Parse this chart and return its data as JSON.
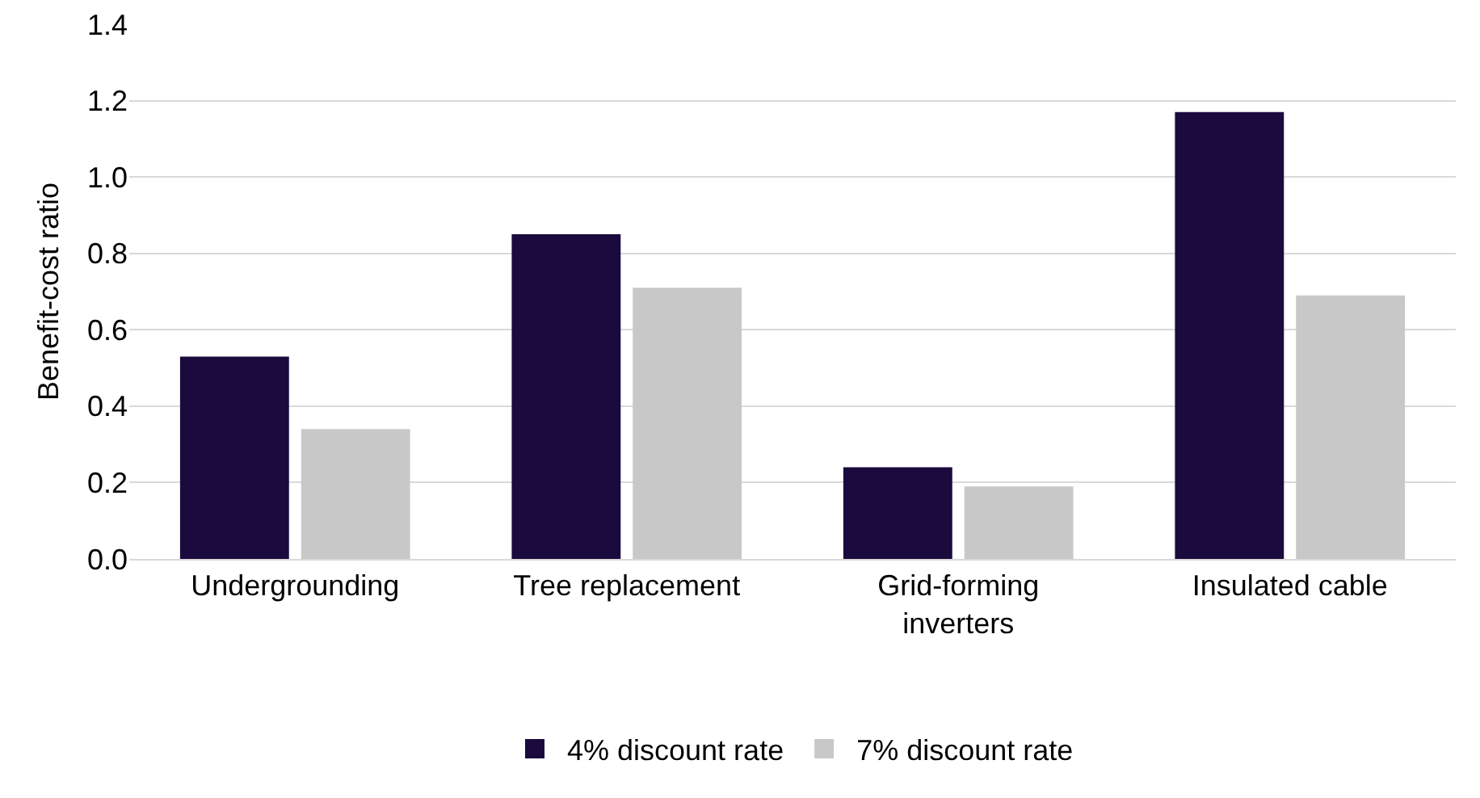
{
  "chart_data": {
    "type": "bar",
    "ylabel": "Benefit-cost ratio",
    "categories": [
      "Undergrounding",
      "Tree replacement",
      "Grid-forming inverters",
      "Insulated cable"
    ],
    "series": [
      {
        "name": "4% discount rate",
        "color": "#1b0a3d",
        "values": [
          0.53,
          0.85,
          0.24,
          1.17
        ]
      },
      {
        "name": "7% discount rate",
        "color": "#c8c8c8",
        "values": [
          0.34,
          0.71,
          0.19,
          0.69
        ]
      }
    ],
    "ylim": [
      0,
      1.4
    ],
    "yticks": [
      {
        "value": 0,
        "label": "0.0"
      },
      {
        "value": 0.2,
        "label": "0.2"
      },
      {
        "value": 0.4,
        "label": "0.4"
      },
      {
        "value": 0.6,
        "label": "0.6"
      },
      {
        "value": 0.8,
        "label": "0.8"
      },
      {
        "value": 1,
        "label": "1.0"
      },
      {
        "value": 1.2,
        "label": "1.2"
      },
      {
        "value": 1.4,
        "label": "1.4"
      }
    ],
    "grid": "y",
    "legend": "bottom"
  }
}
